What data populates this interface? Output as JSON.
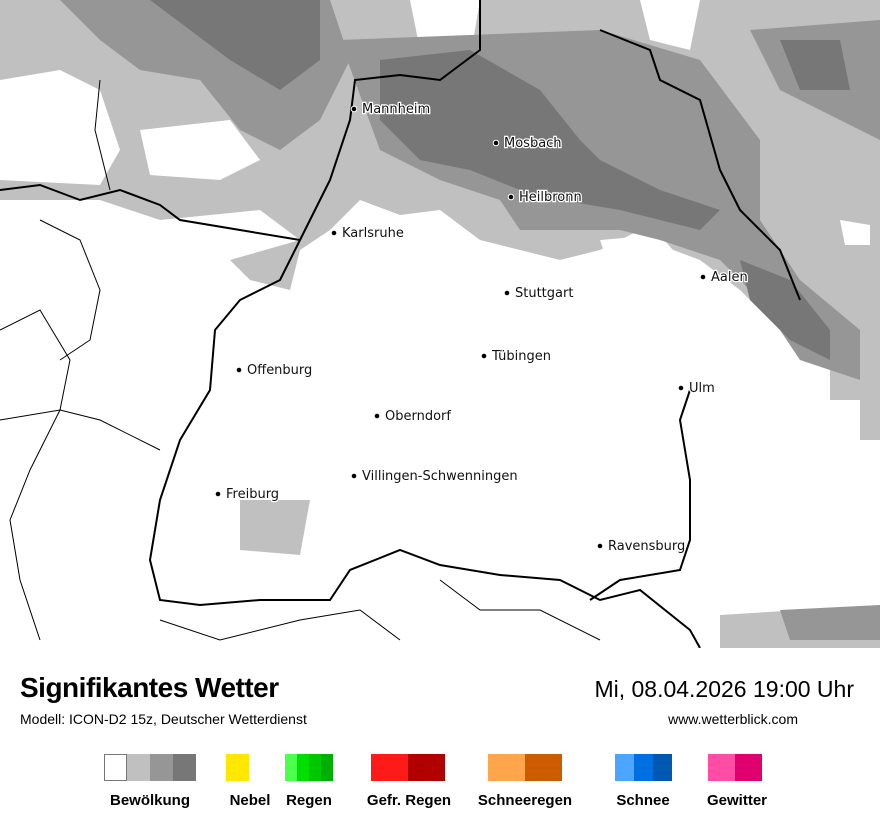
{
  "map": {
    "cities": [
      "Mannheim",
      "Mosbach",
      "Heilbronn",
      "Karlsruhe",
      "Aalen",
      "Stuttgart",
      "Tübingen",
      "Offenburg",
      "Ulm",
      "Oberndorf",
      "Villingen-Schwenningen",
      "Freiburg",
      "Ravensburg"
    ],
    "colors": {
      "cloud_light": "#c0c0c0",
      "cloud_mid": "#969696",
      "cloud_dark": "#777777",
      "border": "#000000"
    }
  },
  "header": {
    "title": "Signifikantes Wetter",
    "model": "Modell: ICON-D2 15z, Deutscher Wetterdienst",
    "datetime": "Mi, 08.04.2026 19:00 Uhr",
    "website": "www.wetterblick.com"
  },
  "legend": [
    {
      "label": "Bewölkung",
      "colors": [
        "#ffffff",
        "#c0c0c0",
        "#969696",
        "#777777"
      ]
    },
    {
      "label": "Nebel",
      "colors": [
        "#ffe800"
      ]
    },
    {
      "label": "Regen",
      "colors": [
        "#4cff4c",
        "#00e000",
        "#00c800",
        "#00b000"
      ]
    },
    {
      "label": "Gefr. Regen",
      "colors": [
        "#ff1a1a",
        "#b00000"
      ]
    },
    {
      "label": "Schneeregen",
      "colors": [
        "#ffa54c",
        "#cc5c00"
      ]
    },
    {
      "label": "Schnee",
      "colors": [
        "#4ca5ff",
        "#0070e0",
        "#0058b0"
      ]
    },
    {
      "label": "Gewitter",
      "colors": [
        "#ff4ca5",
        "#e0006e"
      ]
    }
  ]
}
